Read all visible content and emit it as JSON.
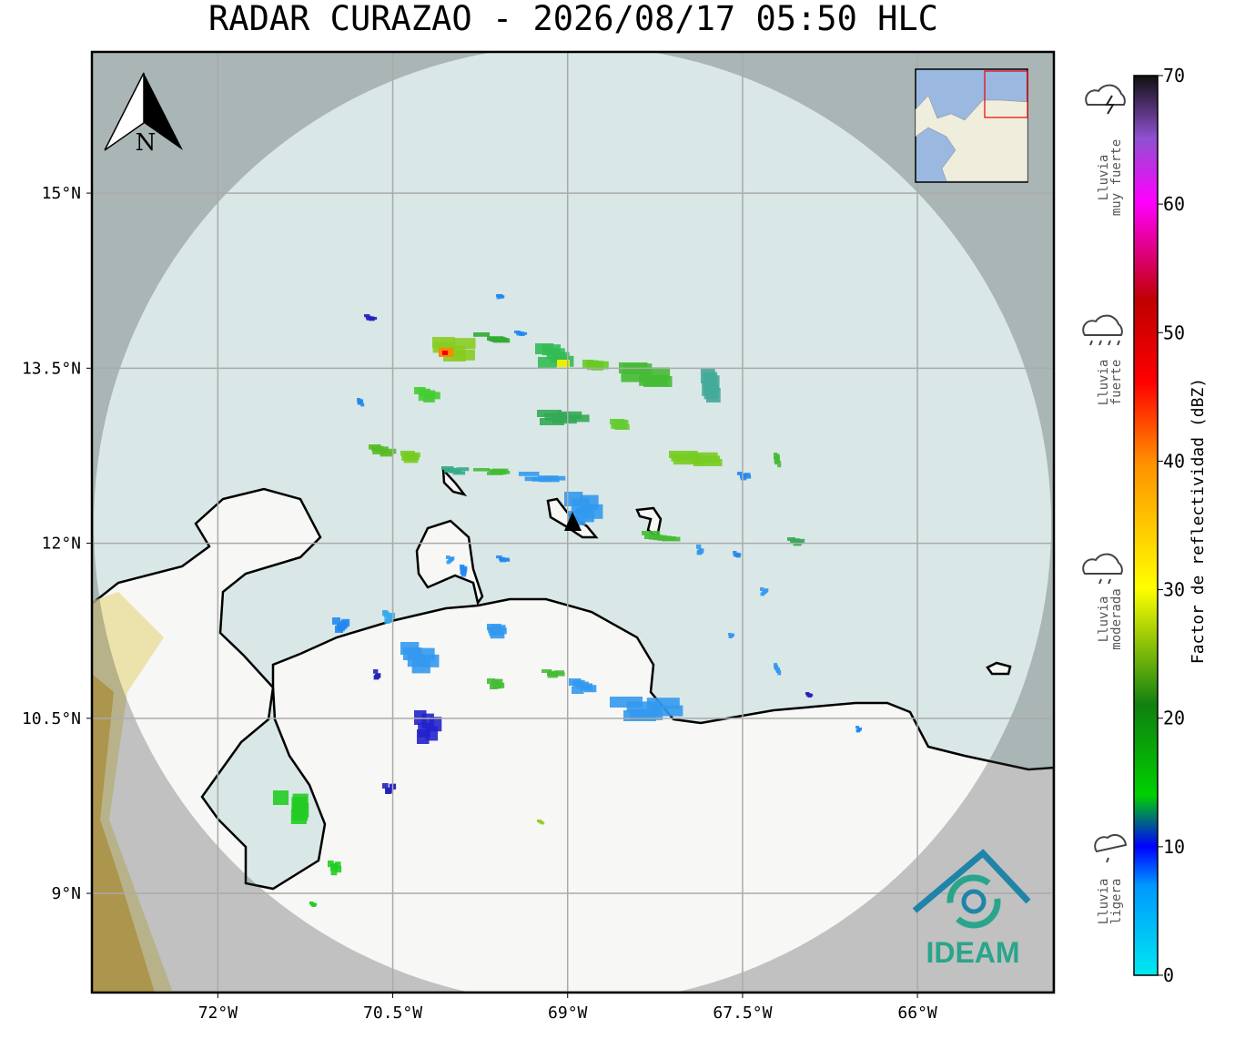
{
  "title": "RADAR CURAZAO - 2026/08/17 05:50 HLC",
  "map": {
    "lon_range": [
      -73.08,
      -64.83
    ],
    "lat_range": [
      8.15,
      16.21
    ],
    "lon_ticks": [
      {
        "value": -72,
        "label": "72°W"
      },
      {
        "value": -70.5,
        "label": "70.5°W"
      },
      {
        "value": -69,
        "label": "69°W"
      },
      {
        "value": -67.5,
        "label": "67.5°W"
      },
      {
        "value": -66,
        "label": "66°W"
      }
    ],
    "lat_ticks": [
      {
        "value": 15,
        "label": "15°N"
      },
      {
        "value": 13.5,
        "label": "13.5°N"
      },
      {
        "value": 12,
        "label": "12°N"
      },
      {
        "value": 10.5,
        "label": "10.5°N"
      },
      {
        "value": 9,
        "label": "9°N"
      }
    ],
    "north_label": "N",
    "logo_text": "IDEAM"
  },
  "colorbar": {
    "label": "Factor de reflectividad (dBZ)",
    "range": [
      0,
      70
    ],
    "ticks": [
      0,
      10,
      20,
      30,
      40,
      50,
      60,
      70
    ]
  },
  "levels": [
    {
      "lines": [
        "Lluvia",
        "muy fuerte"
      ]
    },
    {
      "lines": [
        "Lluvia",
        "fuerte"
      ]
    },
    {
      "lines": [
        "Lluvia",
        "moderada"
      ]
    },
    {
      "lines": [
        "Lluvia",
        "ligera"
      ]
    }
  ]
}
